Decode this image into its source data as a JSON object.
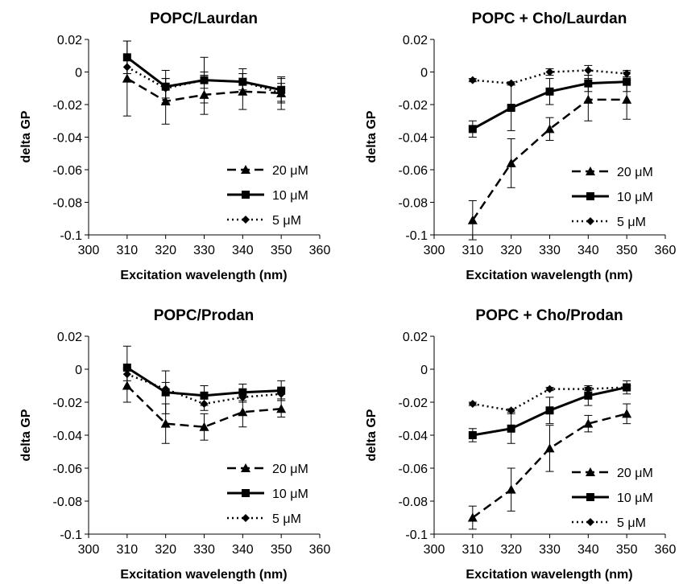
{
  "chart_data": [
    {
      "type": "line",
      "title": "POPC/Laurdan",
      "xlabel": "Excitation wavelength (nm)",
      "ylabel": "delta GP",
      "xlim": [
        300,
        360
      ],
      "ylim": [
        -0.1,
        0.02
      ],
      "xticks": [
        "300",
        "310",
        "320",
        "330",
        "340",
        "350",
        "360"
      ],
      "yticks": [
        "0.02",
        "0",
        "-0.02",
        "-0.04",
        "-0.06",
        "-0.08",
        "-0.1"
      ],
      "x": [
        310,
        320,
        330,
        340,
        350
      ],
      "legend_position": "bottom-right",
      "grid": false,
      "series": [
        {
          "name": "20 μM",
          "marker": "triangle",
          "line": "dashed",
          "values": [
            -0.004,
            -0.018,
            -0.014,
            -0.012,
            -0.013
          ],
          "errors": [
            0.023,
            0.014,
            0.012,
            0.011,
            0.01
          ]
        },
        {
          "name": "10 μM",
          "marker": "square",
          "line": "solid",
          "values": [
            0.009,
            -0.009,
            -0.005,
            -0.006,
            -0.011
          ],
          "errors": [
            0.01,
            0.01,
            0.014,
            0.008,
            0.007
          ]
        },
        {
          "name": "5 μM",
          "marker": "diamond",
          "line": "dotted",
          "values": [
            0.003,
            -0.01,
            -0.005,
            -0.006,
            -0.013
          ],
          "errors": [
            0.004,
            0.006,
            0.005,
            0.005,
            0.006
          ]
        }
      ]
    },
    {
      "type": "line",
      "title": "POPC + Cho/Laurdan",
      "xlabel": "Excitation wavelength (nm)",
      "ylabel": "delta GP",
      "xlim": [
        300,
        360
      ],
      "ylim": [
        -0.1,
        0.02
      ],
      "xticks": [
        "300",
        "310",
        "320",
        "330",
        "340",
        "350",
        "360"
      ],
      "yticks": [
        "0.02",
        "0",
        "-0.02",
        "-0.04",
        "-0.06",
        "-0.08",
        "-0.1"
      ],
      "x": [
        310,
        320,
        330,
        340,
        350
      ],
      "legend_position": "bottom-right",
      "grid": false,
      "series": [
        {
          "name": "20 μM",
          "marker": "triangle",
          "line": "dashed",
          "values": [
            -0.091,
            -0.056,
            -0.035,
            -0.017,
            -0.017
          ],
          "errors": [
            0.012,
            0.015,
            0.007,
            0.013,
            0.012
          ]
        },
        {
          "name": "10 μM",
          "marker": "square",
          "line": "solid",
          "values": [
            -0.035,
            -0.022,
            -0.012,
            -0.007,
            -0.006
          ],
          "errors": [
            0.005,
            0.014,
            0.008,
            0.005,
            0.006
          ]
        },
        {
          "name": "5 μM",
          "marker": "diamond",
          "line": "dotted",
          "values": [
            -0.005,
            -0.007,
            0.0,
            0.001,
            -0.001
          ],
          "errors": [
            0.001,
            0.001,
            0.002,
            0.003,
            0.002
          ]
        }
      ]
    },
    {
      "type": "line",
      "title": "POPC/Prodan",
      "xlabel": "Excitation wavelength (nm)",
      "ylabel": "delta GP",
      "xlim": [
        300,
        360
      ],
      "ylim": [
        -0.1,
        0.02
      ],
      "xticks": [
        "300",
        "310",
        "320",
        "330",
        "340",
        "350",
        "360"
      ],
      "yticks": [
        "0.02",
        "0",
        "-0.02",
        "-0.04",
        "-0.06",
        "-0.08",
        "-0.1"
      ],
      "x": [
        310,
        320,
        330,
        340,
        350
      ],
      "legend_position": "bottom-right",
      "grid": false,
      "series": [
        {
          "name": "20 μM",
          "marker": "triangle",
          "line": "dashed",
          "values": [
            -0.01,
            -0.033,
            -0.035,
            -0.026,
            -0.024
          ],
          "errors": [
            0.01,
            0.012,
            0.008,
            0.009,
            0.005
          ]
        },
        {
          "name": "10 μM",
          "marker": "square",
          "line": "solid",
          "values": [
            0.001,
            -0.014,
            -0.016,
            -0.014,
            -0.013
          ],
          "errors": [
            0.013,
            0.013,
            0.006,
            0.005,
            0.006
          ]
        },
        {
          "name": "5 μM",
          "marker": "diamond",
          "line": "dotted",
          "values": [
            -0.003,
            -0.012,
            -0.021,
            -0.017,
            -0.015
          ],
          "errors": [
            0.004,
            0.004,
            0.004,
            0.003,
            0.003
          ]
        }
      ]
    },
    {
      "type": "line",
      "title": "POPC + Cho/Prodan",
      "xlabel": "Excitation wavelength (nm)",
      "ylabel": "delta GP",
      "xlim": [
        300,
        360
      ],
      "ylim": [
        -0.1,
        0.02
      ],
      "xticks": [
        "300",
        "310",
        "320",
        "330",
        "340",
        "350",
        "360"
      ],
      "yticks": [
        "0.02",
        "0",
        "-0.02",
        "-0.04",
        "-0.06",
        "-0.08",
        "-0.1"
      ],
      "x": [
        310,
        320,
        330,
        340,
        350
      ],
      "legend_position": "bottom-right",
      "grid": false,
      "series": [
        {
          "name": "20 μM",
          "marker": "triangle",
          "line": "dashed",
          "values": [
            -0.09,
            -0.073,
            -0.048,
            -0.033,
            -0.027
          ],
          "errors": [
            0.007,
            0.013,
            0.014,
            0.005,
            0.006
          ]
        },
        {
          "name": "10 μM",
          "marker": "square",
          "line": "solid",
          "values": [
            -0.04,
            -0.036,
            -0.025,
            -0.016,
            -0.011
          ],
          "errors": [
            0.004,
            0.009,
            0.008,
            0.006,
            0.004
          ]
        },
        {
          "name": "5 μM",
          "marker": "diamond",
          "line": "dotted",
          "values": [
            -0.021,
            -0.025,
            -0.012,
            -0.012,
            -0.011
          ],
          "errors": [
            0.001,
            0.001,
            0.001,
            0.001,
            0.001
          ]
        }
      ]
    }
  ]
}
